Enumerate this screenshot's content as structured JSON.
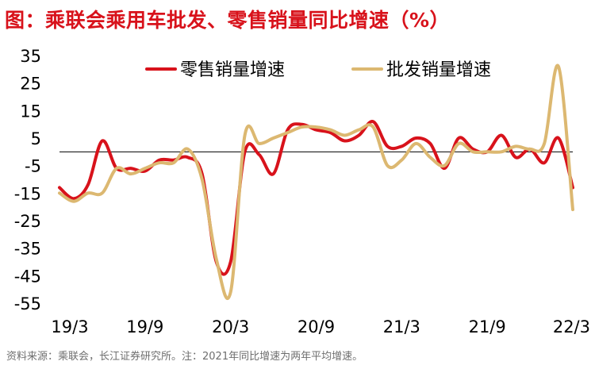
{
  "title": "图：乘联会乘用车批发、零售销量同比增速（%）",
  "source": "资料来源：乘联会，长江证券研究所。注：2021年同比增速为两年平均增速。",
  "chart_data": {
    "type": "line",
    "ylim": [
      -55,
      35
    ],
    "y_ticks": [
      "35",
      "25",
      "15",
      "5",
      "-5",
      "-15",
      "-25",
      "-35",
      "-45",
      "-55"
    ],
    "y_tick_values": [
      35,
      25,
      15,
      5,
      -5,
      -15,
      -25,
      -35,
      -45,
      -55
    ],
    "x_ticks": [
      "19/3",
      "19/9",
      "20/3",
      "20/9",
      "21/3",
      "21/9",
      "22/3"
    ],
    "x_tick_index": [
      0,
      6,
      12,
      18,
      24,
      30,
      36
    ],
    "zero_line": 0,
    "series": [
      {
        "name": "零售销量增速",
        "color": "#d8121b",
        "values": [
          -13,
          -17,
          -12,
          4,
          -6,
          -6,
          -7,
          -3,
          -3,
          -2,
          -8,
          -40,
          -40,
          0,
          -1,
          -8,
          8,
          10,
          8,
          7,
          4,
          6,
          11,
          2,
          2,
          5,
          3,
          -6,
          5,
          1,
          0,
          6,
          -2,
          1,
          -4,
          5,
          -13
        ]
      },
      {
        "name": "批发销量增速",
        "color": "#dcb871",
        "values": [
          -15,
          -18,
          -15,
          -15,
          -6,
          -8,
          -6,
          -4,
          -4,
          1,
          -10,
          -39,
          -51,
          6,
          3,
          5,
          7,
          9,
          9,
          8,
          6,
          8,
          9,
          -5,
          -3,
          3,
          -2,
          -5,
          3,
          0,
          0,
          0,
          2,
          1,
          3,
          31,
          -21
        ]
      }
    ]
  }
}
